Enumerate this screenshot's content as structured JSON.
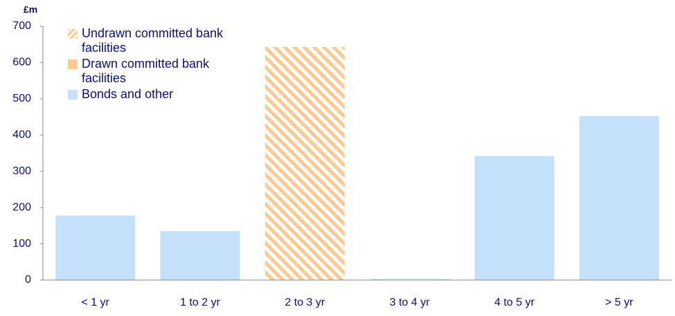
{
  "chart_data": {
    "type": "stacked_bar",
    "y_label": "£m",
    "categories": [
      "< 1 yr",
      "1 to 2 yr",
      "2 to 3 yr",
      "3 to 4 yr",
      "4 to 5 yr",
      "> 5 yr"
    ],
    "series": [
      {
        "name": "Undrawn committed bank facilities",
        "color": "#ffc990",
        "pattern": "hatch",
        "values": [
          0,
          0,
          643,
          0,
          0,
          0
        ]
      },
      {
        "name": "Drawn committed bank facilities",
        "color": "#ffc990",
        "values": [
          0,
          0,
          0,
          0,
          0,
          0
        ]
      },
      {
        "name": "Bonds and other",
        "color": "#c5e0fb",
        "values": [
          178,
          135,
          0,
          3,
          342,
          452
        ]
      }
    ],
    "ylim": [
      0,
      700
    ],
    "yticks": [
      0,
      100,
      200,
      300,
      400,
      500,
      600,
      700
    ],
    "legend": "upper left"
  }
}
